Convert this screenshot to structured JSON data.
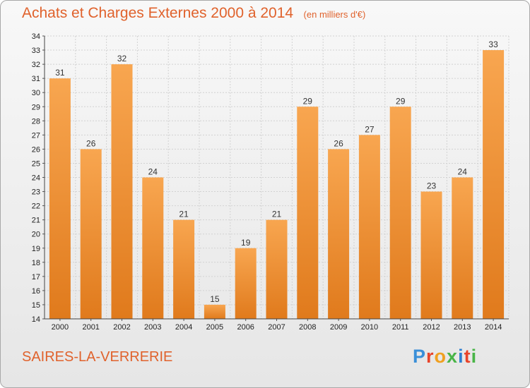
{
  "title": "Achats et Charges Externes 2000 à 2014",
  "unit": "(en milliers d'€)",
  "commune": "SAIRES-LA-VERRERIE",
  "logo": {
    "text": "Proxiti",
    "colors": [
      "#3a8fd8",
      "#e8442a",
      "#f0a020",
      "#49b548",
      "#2e7fd0",
      "#e8442a",
      "#49b548"
    ]
  },
  "colors": {
    "bar_top": "#f8a650",
    "bar_bottom": "#e07a1c",
    "title": "#e0622c"
  },
  "chart_data": {
    "type": "bar",
    "title": "Achats et Charges Externes 2000 à 2014",
    "subtitle": "(en milliers d'€)",
    "categories": [
      "2000",
      "2001",
      "2002",
      "2003",
      "2004",
      "2005",
      "2006",
      "2007",
      "2008",
      "2009",
      "2010",
      "2011",
      "2012",
      "2013",
      "2014"
    ],
    "values": [
      31,
      26,
      32,
      24,
      21,
      15,
      19,
      21,
      29,
      26,
      27,
      29,
      23,
      24,
      33
    ],
    "ylim": [
      14,
      34
    ],
    "yticks": [
      "14",
      "15",
      "16",
      "17",
      "18",
      "19",
      "20",
      "21",
      "22",
      "23",
      "24",
      "25",
      "26",
      "27",
      "28",
      "29",
      "30",
      "31",
      "32",
      "33",
      "34"
    ],
    "xlabel": "",
    "ylabel": "",
    "grid": true,
    "data_labels": true
  }
}
